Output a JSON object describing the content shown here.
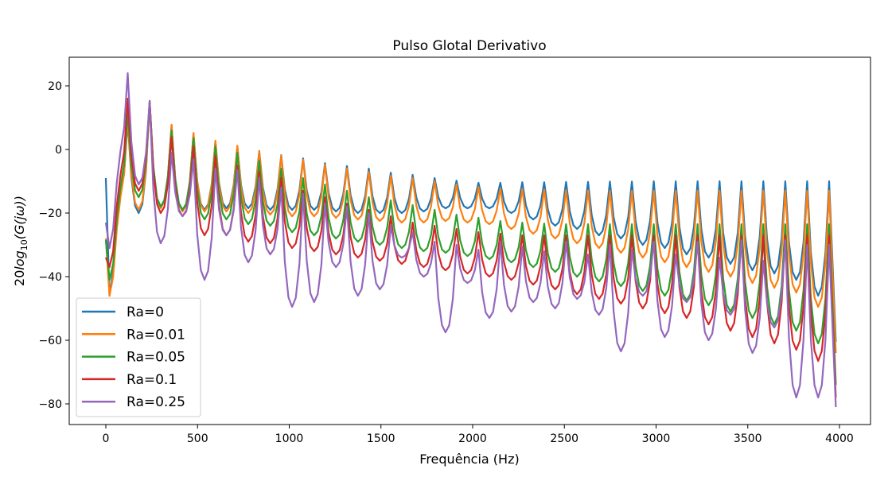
{
  "chart_data": {
    "type": "line",
    "title": "Pulso Glotal Derivativo",
    "xlabel": "Frequência (Hz)",
    "ylabel_prefix": "20",
    "ylabel_log": "log",
    "ylabel_sub": "10",
    "ylabel_rest": "(G(jω))",
    "ylabel": "20log10(G(jω))",
    "xlim": [
      -180,
      4180
    ],
    "ylim": [
      -86,
      29
    ],
    "xticks": [
      0,
      500,
      1000,
      1500,
      2000,
      2500,
      3000,
      3500,
      4000
    ],
    "xtick_labels": [
      "0",
      "500",
      "1000",
      "1500",
      "2000",
      "2500",
      "3000",
      "3500",
      "4000"
    ],
    "yticks": [
      20,
      0,
      -20,
      -40,
      -60,
      -80
    ],
    "ytick_labels": [
      "20",
      "0",
      "−20",
      "−40",
      "−60",
      "−80"
    ],
    "grid": false,
    "legend_position": "lower-left",
    "f0_hz": 119.5,
    "samples_per_harmonic": 6,
    "x_end_hz": 3980,
    "series": [
      {
        "name": "Ra=0",
        "color": "#1f77b4",
        "start": [
          -9,
          -46,
          -38
        ],
        "peaks": [
          9,
          15,
          7.5,
          5,
          2.5,
          1,
          -0.5,
          -1.8,
          -2.8,
          -4.3,
          -5.2,
          -6,
          -7.3,
          -8,
          -9,
          -9.8,
          -10.5,
          -10.5,
          -10.3,
          -10.3,
          -10.2,
          -10.2,
          -10.1,
          -10.1,
          -10,
          -10,
          -10,
          -10,
          -10,
          -10,
          -10,
          -10,
          -10
        ],
        "troughs": [
          -20,
          -18,
          -19,
          -19,
          -18.5,
          -18.5,
          -19,
          -19,
          -19,
          -19.5,
          -20,
          -20,
          -20,
          -19.5,
          -18.5,
          -18.5,
          -18.5,
          -20,
          -22,
          -24,
          -25,
          -27,
          -28,
          -30,
          -31,
          -33,
          -34,
          -36,
          -38,
          -39,
          -41,
          -46
        ],
        "end": -60.5
      },
      {
        "name": "Ra=0.01",
        "color": "#ff7f0e",
        "start": [
          -28,
          -46,
          -40
        ],
        "peaks": [
          10,
          15,
          7.8,
          5.2,
          2.8,
          1.2,
          -0.6,
          -2,
          -3.2,
          -4.8,
          -6,
          -7,
          -8.3,
          -9,
          -10,
          -11,
          -11.8,
          -12.2,
          -12.4,
          -12.6,
          -12.8,
          -12.9,
          -13,
          -13,
          -13,
          -13,
          -13,
          -13,
          -13,
          -13,
          -13,
          -13,
          -13
        ],
        "troughs": [
          -19,
          -18.5,
          -19.5,
          -19.5,
          -19.5,
          -20,
          -20.5,
          -21,
          -21,
          -21.5,
          -22,
          -22.5,
          -23,
          -23,
          -22.5,
          -23,
          -23.5,
          -25,
          -26.5,
          -28,
          -29.5,
          -31,
          -32.5,
          -34,
          -35.5,
          -37,
          -38.5,
          -40,
          -42,
          -43.5,
          -45,
          -49.5
        ],
        "end": -64
      },
      {
        "name": "Ra=0.05",
        "color": "#2ca02c",
        "start": [
          -28.5,
          -41,
          -36
        ],
        "peaks": [
          12,
          15,
          6,
          3.5,
          1,
          -1,
          -3.5,
          -6,
          -9,
          -11,
          -13,
          -15,
          -16,
          -17.5,
          -19,
          -20.5,
          -21.5,
          -22.5,
          -23,
          -23.3,
          -23.5,
          -23.5,
          -23.5,
          -23.5,
          -23.5,
          -23.5,
          -23.5,
          -23.5,
          -23.5,
          -23.5,
          -23.5,
          -23.5,
          -23.5
        ],
        "troughs": [
          -15,
          -18,
          -19,
          -22,
          -22,
          -23.5,
          -24,
          -26,
          -27,
          -28,
          -29,
          -30,
          -31,
          -32,
          -32.5,
          -33.5,
          -34.5,
          -35.5,
          -37,
          -38.5,
          -40,
          -41.5,
          -43,
          -44.5,
          -46,
          -47.5,
          -49,
          -51,
          -53,
          -55,
          -57,
          -61
        ],
        "end": -74
      },
      {
        "name": "Ra=0.1",
        "color": "#d62728",
        "start": [
          -34,
          -37,
          -32
        ],
        "peaks": [
          16,
          15.3,
          4,
          1,
          -2,
          -5,
          -7,
          -9,
          -13,
          -15,
          -17,
          -19,
          -21,
          -23,
          -24,
          -25,
          -26,
          -26.5,
          -27,
          -27,
          -27,
          -27,
          -27,
          -27,
          -27,
          -27,
          -27,
          -27,
          -27,
          -27,
          -27,
          -27,
          -27
        ],
        "troughs": [
          -13,
          -20,
          -21,
          -27,
          -27,
          -29,
          -29.5,
          -31,
          -32,
          -33,
          -34,
          -35,
          -36,
          -37,
          -38,
          -39,
          -40,
          -41,
          -42.5,
          -44,
          -45.5,
          -47,
          -48.5,
          -50,
          -51.5,
          -53,
          -55,
          -57,
          -59,
          -61,
          -63,
          -66.5
        ],
        "end": -78
      },
      {
        "name": "Ra=0.25",
        "color": "#9467bd",
        "start": [
          -23,
          -31,
          -25
        ],
        "peaks": [
          24,
          15.2,
          -1,
          -3,
          -6,
          -6.5,
          -9,
          -12,
          -14,
          -17,
          -18,
          -20,
          -24,
          -26,
          -29,
          -30,
          -31.5,
          -29,
          -30.5,
          -32,
          -29,
          -33,
          -30,
          -31.5,
          -29,
          -33,
          -29,
          -34,
          -28.5,
          -35,
          -28.5,
          -30,
          -30
        ],
        "troughs": [
          -11,
          -29.5,
          -21,
          -41,
          -27,
          -35.5,
          -33,
          -49.5,
          -48,
          -37,
          -46,
          -44,
          -34,
          -40,
          -57.5,
          -42,
          -53,
          -51,
          -48,
          -50,
          -47,
          -52,
          -63.5,
          -46,
          -59,
          -48,
          -60,
          -52,
          -64,
          -56,
          -78,
          -78
        ],
        "end": -81
      }
    ]
  }
}
